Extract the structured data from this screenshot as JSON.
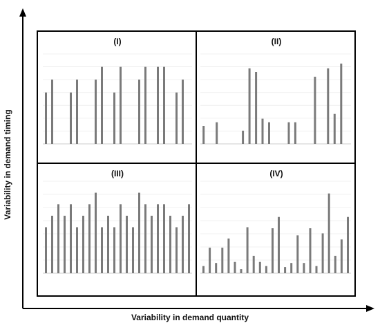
{
  "axes": {
    "x_label": "Variability in demand quantity",
    "y_label": "Variability in demand  timing"
  },
  "quadrants": [
    {
      "label": "(I)",
      "values": [
        4,
        5,
        0,
        0,
        4,
        5,
        0,
        0,
        5,
        6,
        0,
        4,
        6,
        0,
        0,
        5,
        6,
        0,
        6,
        6,
        0,
        4,
        5,
        0
      ],
      "max": 7
    },
    {
      "label": "(II)",
      "values": [
        1.5,
        0,
        1.8,
        0,
        0,
        0,
        1.1,
        6.3,
        6.0,
        2.1,
        1.8,
        0,
        0,
        1.8,
        1.8,
        0,
        0,
        5.6,
        0,
        6.3,
        2.5,
        6.7,
        0
      ],
      "max": 7.5
    },
    {
      "label": "(III)",
      "values": [
        4,
        5,
        6,
        5,
        6,
        4,
        5,
        6,
        7,
        4,
        5,
        4,
        6,
        5,
        4,
        7,
        6,
        5,
        6,
        6,
        5,
        4,
        5,
        6
      ],
      "max": 8
    },
    {
      "label": "(IV)",
      "values": [
        0.7,
        2.5,
        1.0,
        2.5,
        3.4,
        1.1,
        0.4,
        4.5,
        1.7,
        1.1,
        0.7,
        4.4,
        5.5,
        0.6,
        1.0,
        3.7,
        1.0,
        4.4,
        0.7,
        3.9,
        7.8,
        1.7,
        3.3,
        5.5
      ],
      "max": 9
    }
  ]
}
